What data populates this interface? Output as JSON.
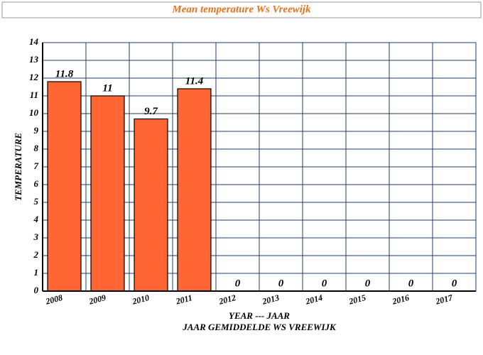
{
  "chart_data": {
    "type": "bar",
    "title": "Mean temperature Ws Vreewijk",
    "categories": [
      "2008",
      "2009",
      "2010",
      "2011",
      "2012",
      "2013",
      "2014",
      "2015",
      "2016",
      "2017"
    ],
    "values": [
      11.8,
      11,
      9.7,
      11.4,
      0,
      0,
      0,
      0,
      0,
      0
    ],
    "color": "#ff6633",
    "ylabel": "TEMPERATURE",
    "xlabel": "YEAR --- JAAR",
    "caption": "JAAR GEMIDDELDE WS VREEWIJK",
    "ylim": [
      0,
      14
    ],
    "yticks": [
      0,
      1,
      2,
      3,
      4,
      5,
      6,
      7,
      8,
      9,
      10,
      11,
      12,
      13,
      14
    ],
    "grid": true
  }
}
